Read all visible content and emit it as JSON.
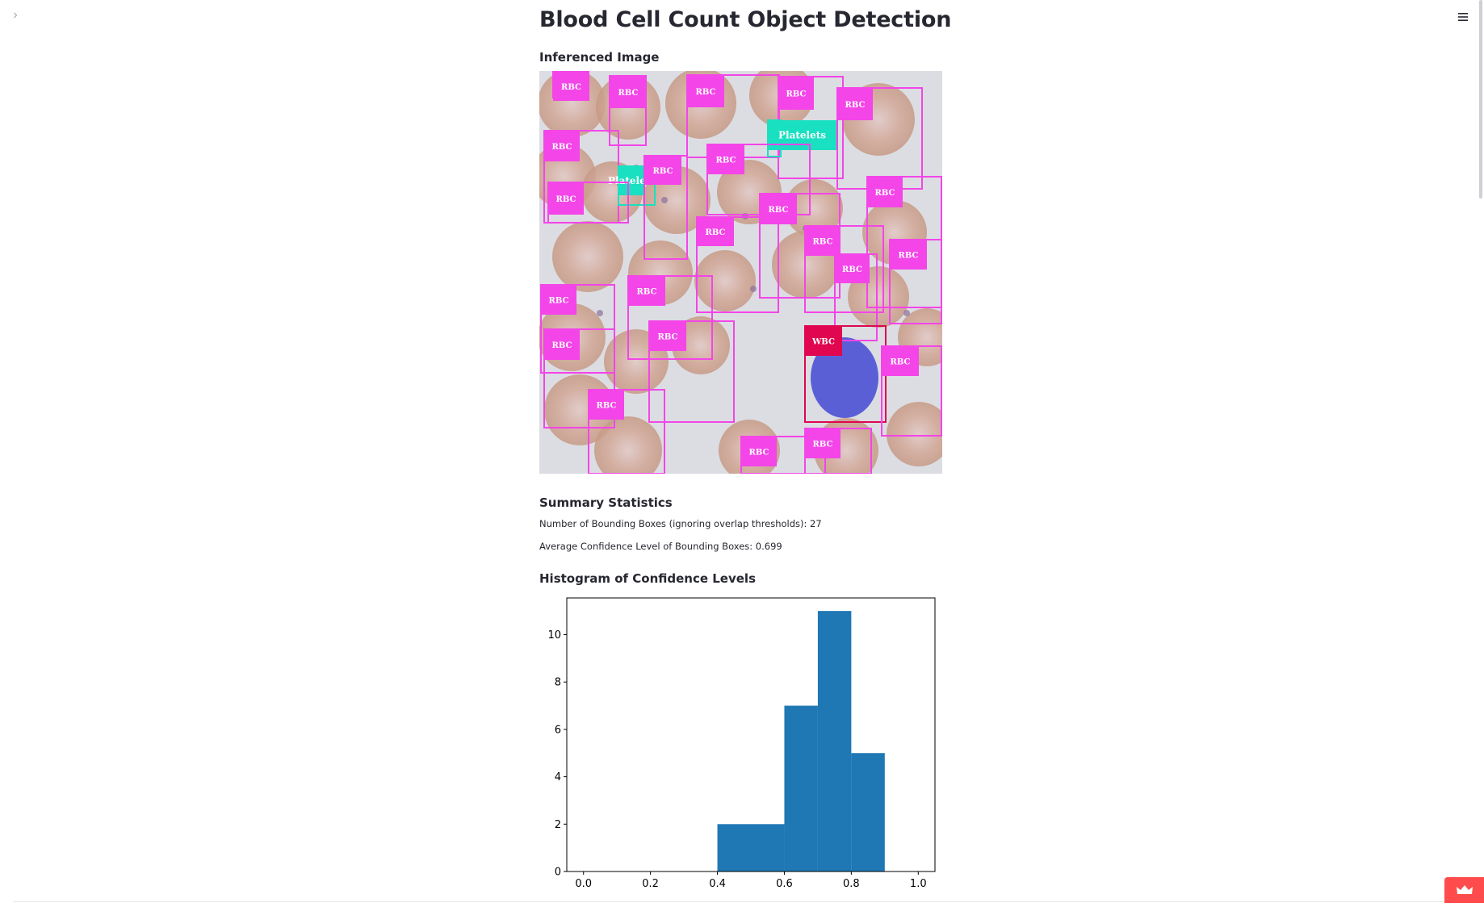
{
  "header": {
    "sidebar_toggle_icon": "chevron-right-icon",
    "menu_icon": "hamburger-menu-icon"
  },
  "main": {
    "title": "Blood Cell Count Object Detection",
    "inferenced_heading": "Inferenced Image",
    "summary_heading": "Summary Statistics",
    "boxes_count_text": "Number of Bounding Boxes (ignoring overlap thresholds): 27",
    "avg_confidence_text": "Average Confidence Level of Bounding Boxes: 0.699",
    "histogram_heading": "Histogram of Confidence Levels"
  },
  "detections": {
    "colors": {
      "RBC": "#f345e8",
      "Platelets": "#19e0c0",
      "WBC": "#e0064f"
    },
    "labels": [
      "RBC",
      "Platelets",
      "WBC"
    ]
  },
  "chart_data": {
    "type": "bar",
    "title": "",
    "xlabel": "",
    "ylabel": "",
    "bin_edges": [
      0.4,
      0.5,
      0.6,
      0.7,
      0.8,
      0.9
    ],
    "values": [
      2,
      2,
      7,
      11,
      5
    ],
    "xlim": [
      -0.05,
      1.05
    ],
    "ylim": [
      0,
      11.55
    ],
    "xticks": [
      "0.0",
      "0.2",
      "0.4",
      "0.6",
      "0.8",
      "1.0"
    ],
    "yticks": [
      "0",
      "2",
      "4",
      "6",
      "8",
      "10"
    ],
    "bar_color": "#1f77b4",
    "grid": false
  },
  "deploy_badge": {
    "icon": "crown-icon",
    "color": "#ff4b4b"
  }
}
